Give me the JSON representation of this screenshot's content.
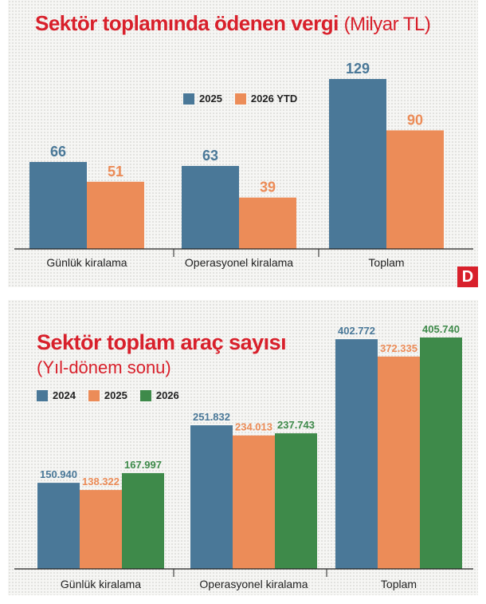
{
  "colors": {
    "blue": "#4a7898",
    "orange": "#ec8c58",
    "green": "#3e8a4a",
    "title_red": "#d8202b",
    "axis": "#222222"
  },
  "chart_data": [
    {
      "type": "bar",
      "title": "Sektör toplamında ödenen vergi",
      "subtitle": "(Milyar TL)",
      "categories": [
        "Günlük kiralama",
        "Operasyonel kiralama",
        "Toplam"
      ],
      "series": [
        {
          "name": "2025",
          "values": [
            66,
            63,
            129
          ],
          "color": "#4a7898"
        },
        {
          "name": "2026 YTD",
          "values": [
            51,
            39,
            90
          ],
          "color": "#ec8c58"
        }
      ],
      "value_labels": [
        [
          "66",
          "63",
          "129"
        ],
        [
          "51",
          "39",
          "90"
        ]
      ],
      "ylim": [
        0,
        129
      ],
      "legend": "top-center",
      "grid": false
    },
    {
      "type": "bar",
      "title": "Sektör toplam araç sayısı",
      "subtitle": "(Yıl-dönem sonu)",
      "categories": [
        "Günlük kiralama",
        "Operasyonel kiralama",
        "Toplam"
      ],
      "series": [
        {
          "name": "2024",
          "values": [
            150940,
            251832,
            402772
          ],
          "color": "#4a7898"
        },
        {
          "name": "2025",
          "values": [
            138322,
            234013,
            372335
          ],
          "color": "#ec8c58"
        },
        {
          "name": "2026",
          "values": [
            167997,
            237743,
            405740
          ],
          "color": "#3e8a4a"
        }
      ],
      "value_labels": [
        [
          "150.940",
          "251.832",
          "402.772"
        ],
        [
          "138.322",
          "234.013",
          "372.335"
        ],
        [
          "167.997",
          "237.743",
          "405.740"
        ]
      ],
      "ylim": [
        0,
        405740
      ],
      "legend": "top-left",
      "grid": false
    }
  ],
  "logo": {
    "letter": "D"
  }
}
